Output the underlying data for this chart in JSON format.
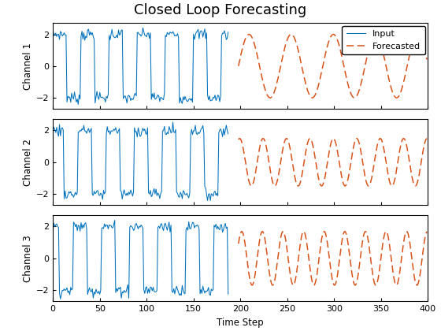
{
  "title": "Closed Loop Forecasting",
  "xlabel": "Time Step",
  "ylabels": [
    "Channel 1",
    "Channel 2",
    "Channel 3"
  ],
  "xlim": [
    0,
    400
  ],
  "ylim": [
    -2.7,
    2.7
  ],
  "yticks": [
    -2,
    0,
    2
  ],
  "xticks": [
    0,
    50,
    100,
    150,
    200,
    250,
    300,
    350,
    400
  ],
  "input_color": "#0072BD",
  "forecast_color": "#D95319",
  "n_input": 188,
  "forecast_start": 198,
  "n_forecast": 202,
  "noise_std": 0.18,
  "seed": 7,
  "legend_labels": [
    "Input",
    "Forecasted"
  ],
  "title_fontsize": 13,
  "label_fontsize": 8.5,
  "tick_fontsize": 8,
  "figsize": [
    5.6,
    4.2
  ],
  "dpi": 100,
  "input_period": 30,
  "forecast_periods": [
    45,
    25,
    22
  ],
  "forecast_amplitudes": [
    2.0,
    1.5,
    1.7
  ],
  "channel_phase_offsets_input": [
    0,
    3,
    8
  ],
  "channel_phase_offsets_forecast": [
    0,
    5,
    2
  ]
}
